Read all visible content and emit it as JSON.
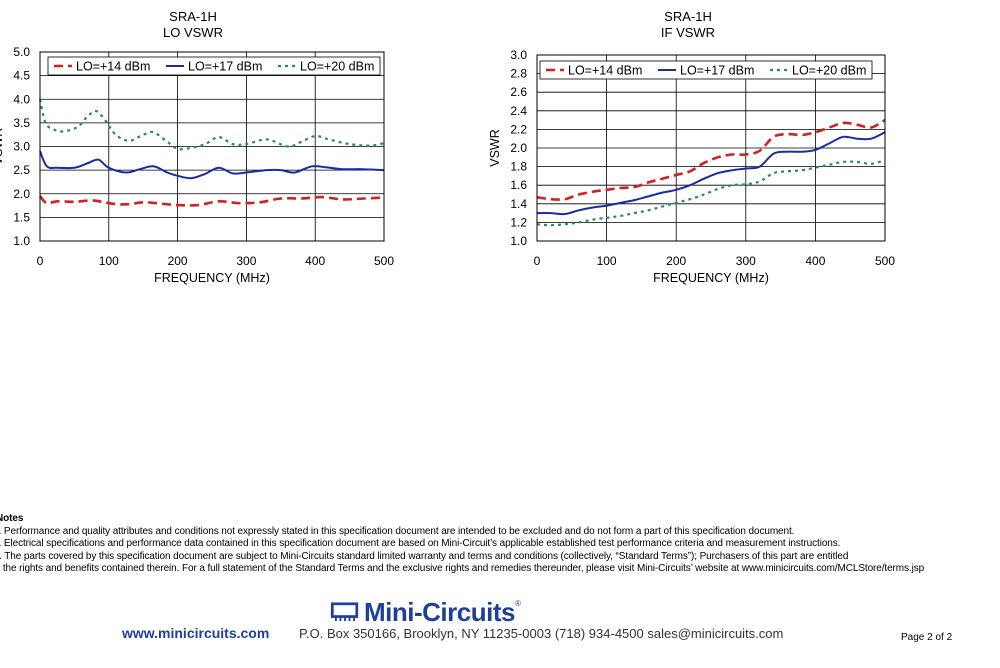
{
  "charts": {
    "lo": {
      "title_line1": "SRA-1H",
      "title_line2": "LO VSWR"
    },
    "if": {
      "title_line1": "SRA-1H",
      "title_line2": "IF VSWR"
    }
  },
  "chart_data": [
    {
      "type": "line",
      "title": "SRA-1H LO VSWR",
      "xlabel": "FREQUENCY (MHz)",
      "ylabel": "VSWR",
      "xlim": [
        0,
        500
      ],
      "ylim": [
        1.0,
        5.0
      ],
      "xticks": [
        "0",
        "100",
        "200",
        "300",
        "400",
        "500"
      ],
      "yticks": [
        "1.0",
        "1.5",
        "2.0",
        "2.5",
        "3.0",
        "3.5",
        "4.0",
        "4.5",
        "5.0"
      ],
      "legend_position": "top",
      "series": [
        {
          "name": "LO=+14 dBm",
          "color": "#d42020",
          "style": "dashed",
          "x": [
            0,
            10,
            25,
            50,
            75,
            90,
            110,
            130,
            150,
            170,
            200,
            230,
            260,
            290,
            320,
            350,
            380,
            410,
            440,
            470,
            500
          ],
          "y": [
            1.95,
            1.8,
            1.84,
            1.83,
            1.86,
            1.83,
            1.78,
            1.78,
            1.82,
            1.8,
            1.76,
            1.76,
            1.84,
            1.8,
            1.82,
            1.9,
            1.9,
            1.93,
            1.88,
            1.9,
            1.92
          ]
        },
        {
          "name": "LO=+17 dBm",
          "color": "#1a2aa8",
          "style": "solid",
          "x": [
            0,
            10,
            25,
            50,
            70,
            85,
            100,
            125,
            145,
            165,
            185,
            200,
            220,
            240,
            260,
            280,
            300,
            330,
            350,
            370,
            395,
            415,
            440,
            470,
            500
          ],
          "y": [
            2.9,
            2.58,
            2.55,
            2.55,
            2.65,
            2.72,
            2.55,
            2.45,
            2.52,
            2.58,
            2.45,
            2.38,
            2.33,
            2.42,
            2.55,
            2.43,
            2.45,
            2.5,
            2.5,
            2.45,
            2.58,
            2.56,
            2.52,
            2.52,
            2.5
          ]
        },
        {
          "name": "LO=+20 dBm",
          "color": "#2a8a6a",
          "style": "dotted",
          "x": [
            0,
            8,
            20,
            35,
            55,
            70,
            82,
            95,
            110,
            130,
            150,
            165,
            185,
            200,
            220,
            240,
            260,
            280,
            300,
            330,
            360,
            380,
            400,
            420,
            450,
            480,
            500
          ],
          "y": [
            4.0,
            3.5,
            3.36,
            3.32,
            3.42,
            3.65,
            3.75,
            3.55,
            3.25,
            3.12,
            3.25,
            3.3,
            3.1,
            2.95,
            2.97,
            3.05,
            3.2,
            3.05,
            3.05,
            3.15,
            3.0,
            3.1,
            3.22,
            3.15,
            3.05,
            3.02,
            3.07
          ]
        }
      ]
    },
    {
      "type": "line",
      "title": "SRA-1H IF VSWR",
      "xlabel": "FREQUENCY (MHz)",
      "ylabel": "VSWR",
      "xlim": [
        0,
        500
      ],
      "ylim": [
        1.0,
        3.0
      ],
      "xticks": [
        "0",
        "100",
        "200",
        "300",
        "400",
        "500"
      ],
      "yticks": [
        "1.0",
        "1.2",
        "1.4",
        "1.6",
        "1.8",
        "2.0",
        "2.2",
        "2.4",
        "2.6",
        "2.8",
        "3.0"
      ],
      "legend_position": "top",
      "series": [
        {
          "name": "LO=+14 dBm",
          "color": "#d42020",
          "style": "dashed",
          "x": [
            0,
            20,
            40,
            60,
            80,
            100,
            120,
            140,
            160,
            180,
            200,
            220,
            240,
            260,
            280,
            300,
            320,
            340,
            360,
            380,
            400,
            420,
            440,
            460,
            480,
            500
          ],
          "y": [
            1.47,
            1.45,
            1.45,
            1.5,
            1.53,
            1.55,
            1.57,
            1.58,
            1.63,
            1.67,
            1.71,
            1.75,
            1.84,
            1.9,
            1.93,
            1.93,
            1.97,
            2.12,
            2.15,
            2.14,
            2.17,
            2.22,
            2.27,
            2.25,
            2.22,
            2.3
          ]
        },
        {
          "name": "LO=+17 dBm",
          "color": "#1a2aa8",
          "style": "solid",
          "x": [
            0,
            20,
            40,
            60,
            80,
            100,
            120,
            140,
            160,
            180,
            200,
            220,
            240,
            260,
            280,
            300,
            320,
            340,
            360,
            380,
            400,
            420,
            440,
            460,
            480,
            500
          ],
          "y": [
            1.3,
            1.3,
            1.29,
            1.33,
            1.36,
            1.38,
            1.41,
            1.44,
            1.48,
            1.52,
            1.55,
            1.6,
            1.67,
            1.73,
            1.76,
            1.78,
            1.8,
            1.94,
            1.96,
            1.96,
            1.98,
            2.05,
            2.12,
            2.1,
            2.1,
            2.17
          ]
        },
        {
          "name": "LO=+20 dBm",
          "color": "#2a8a6a",
          "style": "dotted",
          "x": [
            0,
            20,
            40,
            60,
            80,
            100,
            120,
            140,
            160,
            180,
            200,
            220,
            240,
            260,
            280,
            300,
            320,
            340,
            360,
            380,
            400,
            420,
            440,
            460,
            480,
            500
          ],
          "y": [
            1.18,
            1.17,
            1.18,
            1.2,
            1.23,
            1.25,
            1.27,
            1.3,
            1.33,
            1.37,
            1.41,
            1.45,
            1.5,
            1.56,
            1.6,
            1.61,
            1.64,
            1.73,
            1.75,
            1.76,
            1.79,
            1.82,
            1.85,
            1.85,
            1.83,
            1.87
          ]
        }
      ]
    }
  ],
  "notes": {
    "heading": "Notes",
    "line_a": "A. Performance and quality attributes and conditions not expressly stated in this specification document are intended to be excluded and do not form a part of this specification document.",
    "line_b": "B. Electrical specifications and performance data contained in this specification document are based on Mini-Circuit’s applicable established test performance criteria and measurement instructions.",
    "line_c1": "C. The parts covered by this specification document are subject to Mini-Circuits standard limited warranty and terms and conditions (collectively, “Standard Terms”); Purchasers of this part are entitled",
    "line_c2": "to the rights and benefits contained therein. For a full statement of the Standard Terms and the exclusive rights and remedies thereunder, please visit Mini-Circuits’ website at www.minicircuits.com/MCLStore/terms.jsp"
  },
  "brand": {
    "name": "Mini-Circuits",
    "reg": "®",
    "color": "#1f3f99"
  },
  "footer": {
    "website": "www.minicircuits.com",
    "contact": "P.O. Box 350166, Brooklyn, NY 11235-0003  (718) 934-4500  sales@minicircuits.com",
    "page": "Page 2 of 2"
  }
}
